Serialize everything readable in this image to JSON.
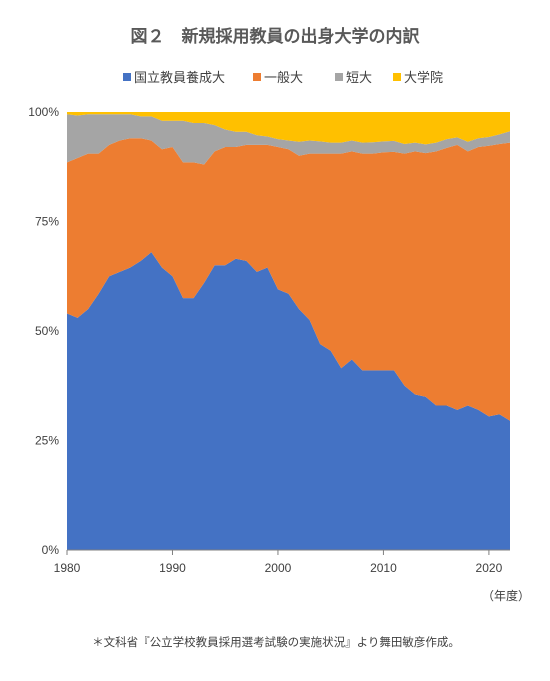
{
  "chart_data": {
    "type": "area",
    "stacked": true,
    "title": "図２　新規採用教員の出身大学の内訳",
    "x_unit_label": "（年度）",
    "source_note": "＊文科省『公立学校教員採用選考試験の実施状況』より舞田敏彦作成。",
    "legend_position": "top",
    "grid": false,
    "xlim": [
      1980,
      2022
    ],
    "ylim": [
      0,
      100
    ],
    "x_ticks": [
      1980,
      1990,
      2000,
      2010,
      2020
    ],
    "y_ticks": [
      0,
      25,
      50,
      75,
      100
    ],
    "y_tick_labels": [
      "0%",
      "25%",
      "50%",
      "75%",
      "100%"
    ],
    "x": [
      1980,
      1981,
      1982,
      1983,
      1984,
      1985,
      1986,
      1987,
      1988,
      1989,
      1990,
      1991,
      1992,
      1993,
      1994,
      1995,
      1996,
      1997,
      1998,
      1999,
      2000,
      2001,
      2002,
      2003,
      2004,
      2005,
      2006,
      2007,
      2008,
      2009,
      2010,
      2011,
      2012,
      2013,
      2014,
      2015,
      2016,
      2017,
      2018,
      2019,
      2020,
      2021,
      2022
    ],
    "series": [
      {
        "name": "国立教員養成大",
        "color": "#4472C4",
        "values": [
          54,
          53,
          55,
          58.5,
          62.5,
          63.5,
          64.5,
          66,
          68,
          64.5,
          62.5,
          57.5,
          57.5,
          61,
          65,
          65,
          66.5,
          66,
          63.5,
          64.5,
          59.5,
          58.5,
          55,
          52.5,
          47,
          45.5,
          41.5,
          43.5,
          41,
          41,
          41,
          41,
          37.5,
          35.5,
          35,
          33,
          33,
          32,
          33,
          32,
          30.5,
          31,
          29.5
        ]
      },
      {
        "name": "一般大",
        "color": "#ED7D31",
        "values": [
          34.5,
          36.5,
          35.5,
          32,
          30,
          30,
          29.5,
          28,
          25.5,
          27,
          29.5,
          31,
          31,
          27,
          26,
          27,
          25.5,
          26.5,
          29,
          28,
          32.5,
          33,
          35,
          38,
          43.5,
          45,
          49,
          47.5,
          49.5,
          49.5,
          49.8,
          49.9,
          53,
          55.5,
          55.6,
          58,
          58.8,
          60.5,
          58,
          60,
          61.8,
          61.7,
          63.5
        ]
      },
      {
        "name": "短大",
        "color": "#A5A5A5",
        "values": [
          11,
          9.7,
          9,
          9,
          7,
          6,
          5.5,
          5,
          5.5,
          6.5,
          6,
          9.5,
          9,
          9.5,
          6,
          4,
          3.5,
          3,
          2.2,
          1.9,
          1.8,
          2,
          3.2,
          3,
          2.8,
          2.5,
          2.5,
          2.5,
          2.5,
          2.6,
          2.5,
          2.5,
          2.2,
          2,
          2,
          2,
          2,
          1.7,
          2.2,
          2,
          2,
          2.2,
          2.6
        ]
      },
      {
        "name": "大学院",
        "color": "#FFC000",
        "values": [
          0.5,
          0.8,
          0.5,
          0.5,
          0.5,
          0.5,
          0.5,
          1,
          1,
          2,
          2,
          2,
          2.5,
          2.5,
          3,
          4,
          4.5,
          4.5,
          5.3,
          5.6,
          6.2,
          6.5,
          6.8,
          6.5,
          6.7,
          7,
          7,
          6.5,
          7,
          6.9,
          6.7,
          6.6,
          7.3,
          7,
          7.4,
          7,
          6.2,
          5.8,
          6.8,
          6,
          5.7,
          5.1,
          4.4
        ]
      }
    ]
  }
}
